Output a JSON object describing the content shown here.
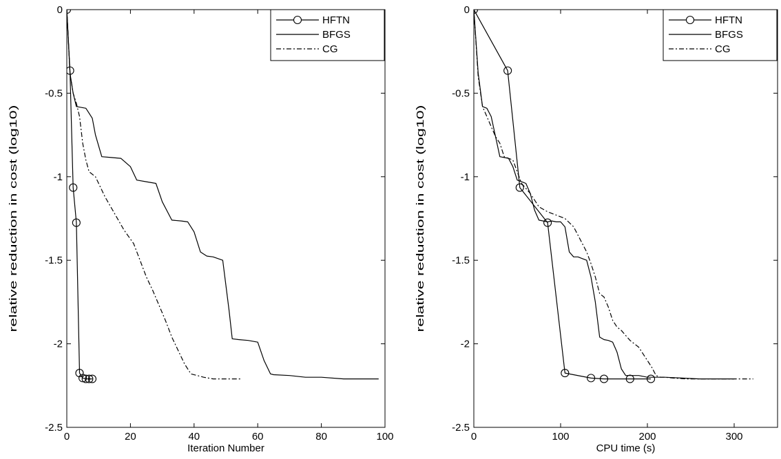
{
  "chart_data": [
    {
      "type": "line",
      "xlabel": "Iteration Number",
      "ylabel": "relative reduction in cost (log10)",
      "xlim": [
        0,
        100
      ],
      "ylim": [
        -2.5,
        0
      ],
      "xticks": [
        0,
        20,
        40,
        60,
        80,
        100
      ],
      "yticks": [
        0,
        -0.5,
        -1,
        -1.5,
        -2,
        -2.5
      ],
      "xtick_labels": [
        "0",
        "20",
        "40",
        "60",
        "80",
        "100"
      ],
      "ytick_labels": [
        "0",
        "-0.5",
        "-1",
        "-1.5",
        "-2",
        "-2.5"
      ],
      "grid": false,
      "legend_position": "top-right",
      "series": [
        {
          "name": "HFTN",
          "style": "solid-circle",
          "x": [
            0,
            1,
            2,
            3,
            4,
            5,
            6,
            7,
            8
          ],
          "y": [
            0,
            -0.365,
            -1.065,
            -1.275,
            -2.175,
            -2.205,
            -2.21,
            -2.21,
            -2.21
          ]
        },
        {
          "name": "BFGS",
          "style": "solid",
          "x": [
            0,
            1,
            2,
            3,
            6,
            8,
            9,
            11,
            14,
            17,
            20,
            22,
            25,
            28,
            30,
            33,
            36,
            38,
            40,
            42,
            44,
            46,
            49,
            51,
            52,
            54,
            57,
            60,
            62,
            64,
            65,
            70,
            75,
            80,
            87,
            98
          ],
          "y": [
            0,
            -0.38,
            -0.5,
            -0.58,
            -0.59,
            -0.65,
            -0.75,
            -0.88,
            -0.885,
            -0.89,
            -0.94,
            -1.02,
            -1.03,
            -1.04,
            -1.15,
            -1.26,
            -1.265,
            -1.27,
            -1.33,
            -1.45,
            -1.475,
            -1.48,
            -1.5,
            -1.8,
            -1.97,
            -1.975,
            -1.98,
            -1.99,
            -2.1,
            -2.18,
            -2.185,
            -2.19,
            -2.2,
            -2.2,
            -2.21,
            -2.21
          ]
        },
        {
          "name": "CG",
          "style": "dash-dot",
          "x": [
            0,
            1,
            2,
            3,
            4,
            5,
            6,
            7,
            9,
            12,
            15,
            18,
            21,
            23,
            25,
            27,
            29,
            31,
            33,
            35,
            37,
            39,
            41,
            43,
            46,
            50,
            55
          ],
          "y": [
            0,
            -0.38,
            -0.5,
            -0.56,
            -0.64,
            -0.8,
            -0.9,
            -0.97,
            -1.0,
            -1.12,
            -1.22,
            -1.32,
            -1.4,
            -1.5,
            -1.6,
            -1.68,
            -1.77,
            -1.86,
            -1.96,
            -2.04,
            -2.12,
            -2.18,
            -2.19,
            -2.2,
            -2.21,
            -2.21,
            -2.21
          ]
        }
      ]
    },
    {
      "type": "line",
      "xlabel": "CPU time (s)",
      "ylabel": "relative reduction in cost (log10)",
      "xlim": [
        0,
        350
      ],
      "ylim": [
        -2.5,
        0
      ],
      "xticks": [
        0,
        100,
        200,
        300
      ],
      "yticks": [
        0,
        -0.5,
        -1,
        -1.5,
        -2,
        -2.5
      ],
      "xtick_labels": [
        "0",
        "100",
        "200",
        "300"
      ],
      "ytick_labels": [
        "0",
        "-0.5",
        "-1",
        "-1.5",
        "-2",
        "-2.5"
      ],
      "grid": false,
      "legend_position": "top-right",
      "series": [
        {
          "name": "HFTN",
          "style": "solid-circle",
          "x": [
            0,
            39,
            53,
            85,
            105,
            135,
            150,
            180,
            204
          ],
          "y": [
            0,
            -0.365,
            -1.065,
            -1.275,
            -2.175,
            -2.205,
            -2.21,
            -2.21,
            -2.21
          ]
        },
        {
          "name": "BFGS",
          "style": "solid",
          "x": [
            0,
            5,
            10,
            15,
            20,
            25,
            30,
            35,
            40,
            45,
            50,
            55,
            60,
            65,
            70,
            75,
            80,
            85,
            90,
            95,
            100,
            105,
            110,
            115,
            120,
            125,
            130,
            135,
            140,
            145,
            150,
            155,
            160,
            165,
            170,
            175,
            180,
            185,
            190,
            200,
            210,
            220,
            240,
            260,
            280,
            300
          ],
          "y": [
            0,
            -0.38,
            -0.58,
            -0.59,
            -0.64,
            -0.76,
            -0.88,
            -0.885,
            -0.89,
            -0.94,
            -1.02,
            -1.03,
            -1.04,
            -1.1,
            -1.2,
            -1.26,
            -1.265,
            -1.27,
            -1.265,
            -1.27,
            -1.27,
            -1.3,
            -1.45,
            -1.48,
            -1.48,
            -1.49,
            -1.5,
            -1.6,
            -1.75,
            -1.96,
            -1.975,
            -1.98,
            -1.99,
            -2.05,
            -2.15,
            -2.19,
            -2.19,
            -2.19,
            -2.19,
            -2.2,
            -2.2,
            -2.2,
            -2.205,
            -2.21,
            -2.21,
            -2.21
          ]
        },
        {
          "name": "CG",
          "style": "dash-dot",
          "x": [
            0,
            5,
            10,
            15,
            20,
            25,
            30,
            35,
            45,
            55,
            65,
            75,
            85,
            95,
            105,
            115,
            125,
            130,
            135,
            140,
            145,
            150,
            155,
            160,
            165,
            170,
            175,
            180,
            185,
            190,
            195,
            200,
            205,
            210,
            215,
            220,
            230,
            245,
            260,
            280,
            300,
            322
          ],
          "y": [
            0,
            -0.4,
            -0.58,
            -0.64,
            -0.7,
            -0.76,
            -0.8,
            -0.88,
            -0.9,
            -1.04,
            -1.1,
            -1.18,
            -1.21,
            -1.23,
            -1.25,
            -1.3,
            -1.4,
            -1.45,
            -1.52,
            -1.6,
            -1.7,
            -1.72,
            -1.78,
            -1.86,
            -1.9,
            -1.92,
            -1.95,
            -1.98,
            -2.0,
            -2.02,
            -2.06,
            -2.1,
            -2.14,
            -2.19,
            -2.2,
            -2.2,
            -2.205,
            -2.21,
            -2.21,
            -2.21,
            -2.21,
            -2.21
          ]
        }
      ]
    }
  ]
}
